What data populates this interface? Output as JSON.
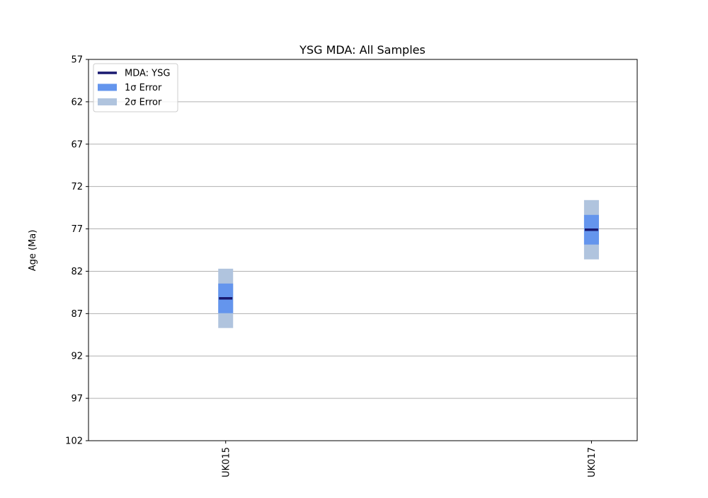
{
  "chart_data": {
    "type": "range",
    "title": "YSG MDA: All Samples",
    "xlabel": "",
    "ylabel": "Age (Ma)",
    "categories": [
      "UK015",
      "UK017"
    ],
    "y_ticks": [
      57,
      62,
      67,
      72,
      77,
      82,
      87,
      92,
      97,
      102
    ],
    "ylim": [
      57,
      102
    ],
    "y_inverted": true,
    "grid": "horizontal",
    "legend": {
      "position": "top-left",
      "entries": [
        {
          "label": "MDA: YSG",
          "color": "#191970",
          "kind": "line"
        },
        {
          "label": "1σ Error",
          "color": "#6495ED",
          "kind": "patch"
        },
        {
          "label": "2σ Error",
          "color": "#B0C4DE",
          "kind": "patch"
        }
      ]
    },
    "series": [
      {
        "category": "UK015",
        "mda": 85.2,
        "err1_low": 83.45,
        "err1_high": 86.95,
        "err2_low": 81.7,
        "err2_high": 88.7
      },
      {
        "category": "UK017",
        "mda": 77.1,
        "err1_low": 75.35,
        "err1_high": 78.85,
        "err2_low": 73.6,
        "err2_high": 80.6
      }
    ],
    "colors": {
      "mda": "#191970",
      "err1": "#6495ED",
      "err2": "#B0C4DE",
      "grid": "#b0b0b0",
      "axis": "#000000"
    }
  }
}
